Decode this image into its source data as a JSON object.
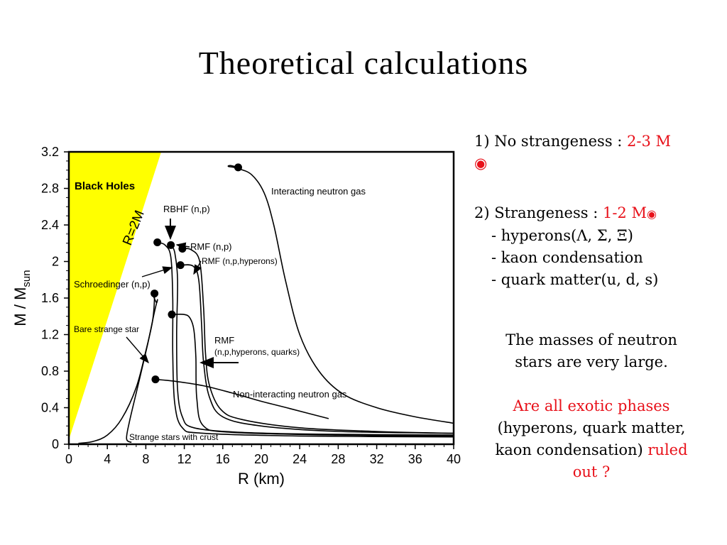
{
  "slide": {
    "title": "Theoretical calculations"
  },
  "points": {
    "p1_prefix": "1) No strangeness : ",
    "p1_value": "2-3 M",
    "p1_sun": "◉",
    "p2_prefix": "2) Strangeness : ",
    "p2_value": "1-2 M",
    "p2_sun": "◉",
    "p2_items": [
      "- hyperons(Λ, Σ, Ξ)",
      "- kaon condensation",
      "- quark matter(u, d, s)"
    ]
  },
  "conclusion": {
    "line1": "The masses of neutron stars are very large.",
    "question_red": "Are all exotic phases",
    "question_mid": " (hyperons, quark matter, kaon condensation) ",
    "question_red_end": "ruled out ?"
  },
  "colors": {
    "accent_red": "#e8111a",
    "black_hole_region": "#ffff00"
  },
  "chart_data": {
    "type": "line",
    "xlabel": "R  (km)",
    "ylabel_main": "M / M",
    "ylabel_sub": "sun",
    "xlim": [
      0,
      40
    ],
    "ylim": [
      0,
      3.2
    ],
    "xticks": [
      0,
      4,
      8,
      12,
      16,
      20,
      24,
      28,
      32,
      36,
      40
    ],
    "yticks": [
      0,
      0.4,
      0.8,
      1.2,
      1.6,
      2,
      2.4,
      2.8,
      3.2
    ],
    "ytick_labels": [
      "0",
      "0.4",
      "0.8",
      "1.2",
      "1.6",
      "2",
      "2.4",
      "2.8",
      "3.2"
    ],
    "grid": false,
    "region": {
      "label": "Black Holes",
      "boundary_label": "R=2M",
      "boundary": [
        [
          0,
          0.05
        ],
        [
          9.6,
          3.2
        ]
      ]
    },
    "series": [
      {
        "name": "Interacting neutron gas",
        "points": [
          [
            17.6,
            3.03
          ],
          [
            16.8,
            3.05
          ],
          [
            16.6,
            3.04
          ],
          [
            17.5,
            3.02
          ],
          [
            19,
            2.95
          ],
          [
            20.3,
            2.75
          ],
          [
            21.3,
            2.4
          ],
          [
            22.5,
            1.8
          ],
          [
            24,
            1.2
          ],
          [
            26,
            0.8
          ],
          [
            28.5,
            0.55
          ],
          [
            32,
            0.4
          ],
          [
            36,
            0.3
          ],
          [
            40,
            0.23
          ]
        ]
      },
      {
        "name": "Non-interacting neutron gas",
        "points": [
          [
            9.0,
            0.71
          ],
          [
            11,
            0.69
          ],
          [
            14,
            0.64
          ],
          [
            17,
            0.56
          ],
          [
            20,
            0.47
          ],
          [
            23,
            0.39
          ],
          [
            27,
            0.28
          ]
        ]
      },
      {
        "name": "RBHF (n,p)",
        "points": [
          [
            10.6,
            2.18
          ],
          [
            11.0,
            2.1
          ],
          [
            11.3,
            1.8
          ],
          [
            11.2,
            1.2
          ],
          [
            11.3,
            0.6
          ],
          [
            11.8,
            0.3
          ],
          [
            13,
            0.18
          ],
          [
            18,
            0.13
          ],
          [
            26,
            0.11
          ],
          [
            40,
            0.1
          ]
        ]
      },
      {
        "name": "RMF (n,p)",
        "points": [
          [
            11.8,
            2.14
          ],
          [
            12.7,
            2.13
          ],
          [
            13.6,
            2.0
          ],
          [
            14.0,
            1.5
          ],
          [
            14.2,
            1.0
          ],
          [
            14.6,
            0.65
          ],
          [
            15.8,
            0.38
          ],
          [
            18,
            0.27
          ],
          [
            24,
            0.18
          ],
          [
            32,
            0.14
          ],
          [
            40,
            0.12
          ]
        ]
      },
      {
        "name": "RMF (n,p,hyperons)",
        "points": [
          [
            11.6,
            1.96
          ],
          [
            12.9,
            1.95
          ],
          [
            13.5,
            1.8
          ],
          [
            13.8,
            1.3
          ],
          [
            14.0,
            0.9
          ],
          [
            14.6,
            0.52
          ],
          [
            16,
            0.3
          ],
          [
            20,
            0.2
          ],
          [
            28,
            0.14
          ],
          [
            40,
            0.12
          ]
        ]
      },
      {
        "name": "Schroedinger (n,p)",
        "points": [
          [
            9.2,
            2.21
          ],
          [
            10.0,
            2.18
          ],
          [
            10.6,
            2.05
          ],
          [
            10.8,
            1.6
          ],
          [
            10.8,
            1.0
          ],
          [
            11.0,
            0.45
          ],
          [
            11.8,
            0.18
          ],
          [
            14,
            0.12
          ],
          [
            24,
            0.09
          ],
          [
            40,
            0.08
          ]
        ]
      },
      {
        "name": "RMF (n,p,hyperons, quarks)",
        "points": [
          [
            10.7,
            1.42
          ],
          [
            12,
            1.42
          ],
          [
            12.6,
            1.38
          ],
          [
            13.0,
            1.25
          ],
          [
            13.2,
            0.95
          ],
          [
            13.3,
            0.5
          ],
          [
            14,
            0.2
          ],
          [
            17,
            0.13
          ],
          [
            28,
            0.1
          ],
          [
            40,
            0.09
          ]
        ]
      },
      {
        "name": "Bare strange star",
        "points": [
          [
            1.0,
            0.01
          ],
          [
            2.5,
            0.03
          ],
          [
            4,
            0.1
          ],
          [
            5.5,
            0.28
          ],
          [
            7,
            0.62
          ],
          [
            8,
            1.02
          ],
          [
            8.7,
            1.35
          ],
          [
            8.9,
            1.6
          ],
          [
            8.8,
            1.64
          ]
        ]
      },
      {
        "name": "Strange stars with crust",
        "points": [
          [
            6.5,
            0.02
          ],
          [
            6.0,
            0.06
          ],
          [
            6.3,
            0.25
          ],
          [
            7.2,
            0.65
          ],
          [
            8.2,
            1.1
          ],
          [
            8.9,
            1.45
          ],
          [
            9.2,
            1.58
          ],
          [
            9.1,
            1.55
          ],
          [
            8.7,
            1.64
          ],
          [
            8.6,
            1.64
          ]
        ]
      }
    ],
    "markers": [
      [
        17.6,
        3.03
      ],
      [
        9.2,
        2.21
      ],
      [
        10.6,
        2.18
      ],
      [
        11.8,
        2.14
      ],
      [
        11.6,
        1.96
      ],
      [
        8.9,
        1.65
      ],
      [
        10.7,
        1.42
      ],
      [
        9.0,
        0.71
      ]
    ],
    "labels": {
      "black_holes": "Black Holes",
      "r2m": "R=2M",
      "interacting": "Interacting neutron gas",
      "rbhf": "RBHF (n,p)",
      "rmf_np": "RMF (n,p)",
      "rmf_hyp": "RMF (n,p,hyperons)",
      "schroedinger": "Schroedinger (n,p)",
      "bare": "Bare strange star",
      "rmf_quarks_1": "RMF",
      "rmf_quarks_2": "(n,p,hyperons, quarks)",
      "noninteracting": "Non-interacting neutron gas",
      "crust": "Strange stars with crust"
    }
  }
}
